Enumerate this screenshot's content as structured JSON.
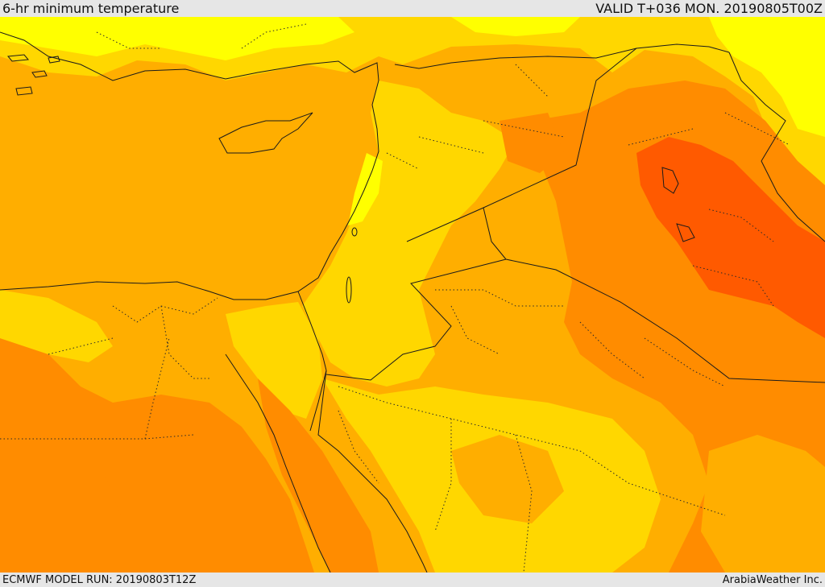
{
  "header": {
    "title": "6-hr minimum temperature",
    "valid": "VALID T+036 MON. 20190805T00Z"
  },
  "footer": {
    "model_run": "ECMWF MODEL RUN: 20190803T12Z",
    "credit": "ArabiaWeather Inc."
  },
  "map": {
    "field": "6-hr minimum temperature",
    "palette": {
      "cool_yellow": "#ffff00",
      "light_yellow": "#ffd700",
      "gold": "#ffae00",
      "orange": "#ff8c00",
      "deep_orange": "#ff5a00"
    },
    "line_colors": {
      "coastline": "#1a1a1a",
      "border": "#1a1a1a",
      "province_dotted": "#2a2a2a"
    }
  }
}
